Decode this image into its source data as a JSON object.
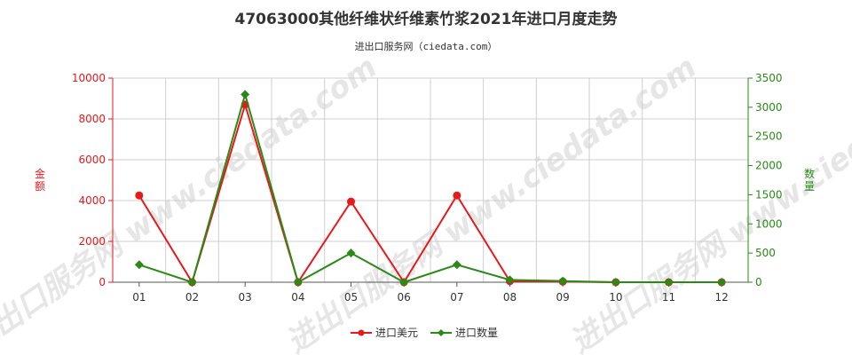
{
  "title": "47063000其他纤维状纤维素竹浆2021年进口月度走势",
  "subtitle": "进出口服务网（ciedata.com）",
  "watermark": "进出口服务网 www.ciedata.com",
  "colors": {
    "usd": "#e8191b",
    "qty": "#2a8a16",
    "grid": "#cfcfcf",
    "axis": "#555555"
  },
  "chart_data": {
    "type": "line",
    "categories": [
      "01",
      "02",
      "03",
      "04",
      "05",
      "06",
      "07",
      "08",
      "09",
      "10",
      "11",
      "12"
    ],
    "left_axis": {
      "label": "金额",
      "min": 0,
      "max": 10000,
      "ticks": [
        "0",
        "2000",
        "4000",
        "6000",
        "8000",
        "10000"
      ]
    },
    "right_axis": {
      "label": "数量",
      "min": 0,
      "max": 3500,
      "ticks": [
        "0",
        "500",
        "1000",
        "1500",
        "2000",
        "2500",
        "3000",
        "3500"
      ]
    },
    "series": [
      {
        "name": "进口美元",
        "axis": "left",
        "color": "#e8191b",
        "marker": "circle",
        "values": [
          4250,
          0,
          8700,
          0,
          3950,
          0,
          4250,
          50,
          30,
          0,
          0,
          0
        ]
      },
      {
        "name": "进口数量",
        "axis": "right",
        "color": "#2a8a16",
        "marker": "diamond",
        "values": [
          300,
          0,
          3220,
          0,
          500,
          0,
          300,
          40,
          20,
          0,
          0,
          0
        ]
      }
    ],
    "grid": true,
    "legend_position": "bottom-center"
  }
}
